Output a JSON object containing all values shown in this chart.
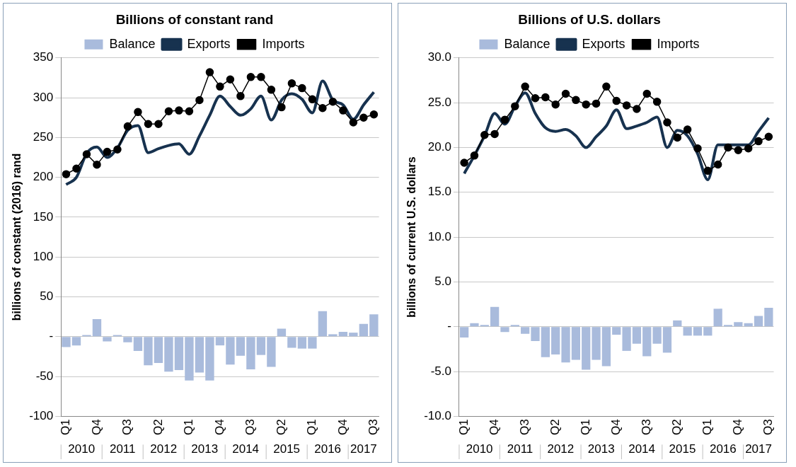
{
  "chart_data": [
    {
      "type": "bar",
      "title": "Billions of constant rand",
      "ylabel": "billions of constant (2016) rand",
      "categories": [
        "Q1",
        null,
        null,
        "Q4",
        null,
        null,
        "Q3",
        null,
        null,
        "Q2",
        null,
        null,
        "Q1",
        null,
        null,
        "Q4",
        null,
        null,
        "Q3",
        null,
        null,
        "Q2",
        null,
        null,
        "Q1",
        null,
        null,
        "Q4",
        null,
        null,
        "Q3"
      ],
      "series": [
        {
          "name": "Balance",
          "color": "#a9bbdc",
          "values": [
            -13,
            -11,
            2,
            22,
            -6,
            2,
            -7,
            -18,
            -36,
            -33,
            -44,
            -42,
            -55,
            -45,
            -55,
            -11,
            -35,
            -24,
            -41,
            -23,
            -38,
            10,
            -14,
            -15,
            -15,
            32,
            3,
            6,
            5,
            16,
            28
          ]
        },
        {
          "name": "Exports",
          "type": "line",
          "color": "#17324f",
          "marker": "none",
          "values": [
            191,
            200,
            230,
            238,
            225,
            237,
            259,
            265,
            231,
            236,
            240,
            242,
            229,
            252,
            278,
            302,
            289,
            278,
            286,
            302,
            272,
            297,
            305,
            298,
            281,
            321,
            297,
            291,
            273,
            291,
            307
          ]
        },
        {
          "name": "Imports",
          "type": "line",
          "color": "#000000",
          "marker": "circle",
          "values": [
            204,
            211,
            229,
            216,
            232,
            235,
            264,
            282,
            267,
            267,
            283,
            284,
            283,
            297,
            332,
            314,
            323,
            302,
            326,
            326,
            310,
            288,
            318,
            312,
            298,
            287,
            295,
            284,
            269,
            275,
            279
          ]
        }
      ],
      "ylim": [
        -100,
        350
      ],
      "yticks": [
        -100,
        -50,
        {
          "value": 0,
          "label": "-"
        },
        50,
        100,
        150,
        200,
        250,
        300,
        350
      ],
      "grid": "y",
      "legend": "top",
      "annotations": [
        "2010",
        "2011",
        "2012",
        "2013",
        "2014",
        "2015",
        "2016",
        "2017"
      ]
    },
    {
      "type": "bar",
      "title": "Billions of U.S. dollars",
      "ylabel": "billions of current U.S. dollars",
      "categories": [
        "Q1",
        null,
        null,
        "Q4",
        null,
        null,
        "Q3",
        null,
        null,
        "Q2",
        null,
        null,
        "Q1",
        null,
        null,
        "Q4",
        null,
        null,
        "Q3",
        null,
        null,
        "Q2",
        null,
        null,
        "Q1",
        null,
        null,
        "Q4",
        null,
        null,
        "Q3"
      ],
      "series": [
        {
          "name": "Balance",
          "color": "#a9bbdc",
          "values": [
            -1.2,
            0.4,
            0.2,
            2.2,
            -0.6,
            0.2,
            -0.8,
            -1.6,
            -3.4,
            -3.1,
            -4.0,
            -3.7,
            -4.8,
            -3.7,
            -4.4,
            -0.9,
            -2.7,
            -1.9,
            -3.3,
            -1.9,
            -2.9,
            0.7,
            -1.0,
            -1.0,
            -1.0,
            2.0,
            0.2,
            0.5,
            0.4,
            1.2,
            2.1
          ]
        },
        {
          "name": "Exports",
          "type": "line",
          "color": "#17324f",
          "marker": "none",
          "values": [
            17.1,
            19.1,
            21.3,
            23.8,
            22.6,
            24.6,
            26.1,
            23.8,
            22.2,
            21.8,
            22.0,
            21.3,
            20.0,
            21.2,
            22.4,
            24.2,
            22.1,
            22.4,
            22.8,
            23.4,
            20.0,
            21.9,
            21.3,
            19.3,
            16.4,
            20.3,
            20.3,
            20.3,
            20.3,
            21.8,
            23.3
          ]
        },
        {
          "name": "Imports",
          "type": "line",
          "color": "#000000",
          "marker": "circle",
          "values": [
            18.3,
            19.1,
            21.4,
            21.5,
            23.1,
            24.6,
            26.8,
            25.5,
            25.6,
            24.8,
            26.0,
            25.3,
            24.8,
            24.9,
            26.8,
            25.2,
            24.7,
            24.3,
            26.0,
            25.1,
            22.8,
            21.1,
            22.0,
            19.9,
            17.4,
            18.1,
            20.0,
            19.7,
            19.9,
            20.7,
            21.2
          ]
        }
      ],
      "ylim": [
        -10,
        30
      ],
      "yticks": [
        {
          "value": -10,
          "label": "-10.0"
        },
        {
          "value": -5,
          "label": "-5.0"
        },
        {
          "value": 0,
          "label": "-"
        },
        {
          "value": 5,
          "label": "5.0"
        },
        {
          "value": 10,
          "label": "10.0"
        },
        {
          "value": 15,
          "label": "15.0"
        },
        {
          "value": 20,
          "label": "20.0"
        },
        {
          "value": 25,
          "label": "25.0"
        },
        {
          "value": 30,
          "label": "30.0"
        }
      ],
      "grid": "y",
      "legend": "top",
      "annotations": [
        "2010",
        "2011",
        "2012",
        "2013",
        "2014",
        "2015",
        "2016",
        "2017"
      ]
    }
  ]
}
